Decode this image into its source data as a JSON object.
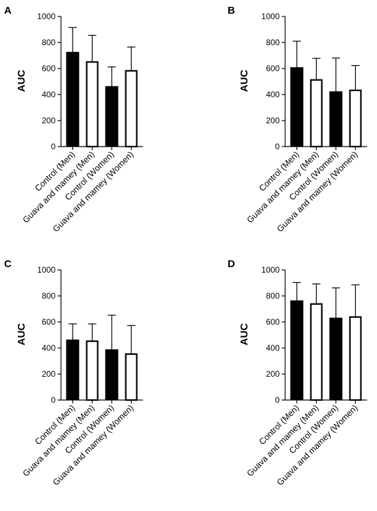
{
  "colors": {
    "filled": "#000000",
    "open": "#ffffff",
    "stroke": "#000000"
  },
  "chart_data": [
    {
      "type": "bar",
      "panel": "A",
      "ylabel": "AUC",
      "xlabel": "",
      "ylim": [
        0,
        1000
      ],
      "yticks": [
        0,
        200,
        400,
        600,
        800,
        1000
      ],
      "categories": [
        "Control (Men)",
        "Guava and mamey (Men)",
        "Control (Women)",
        "Guava and mamey (Women)"
      ],
      "values": [
        725,
        650,
        462,
        582
      ],
      "error_upper": [
        915,
        855,
        612,
        765
      ],
      "bar_fill": [
        "filled",
        "open",
        "filled",
        "open"
      ],
      "grid": false
    },
    {
      "type": "bar",
      "panel": "B",
      "ylabel": "AUC",
      "xlabel": "",
      "ylim": [
        0,
        1000
      ],
      "yticks": [
        0,
        200,
        400,
        600,
        800,
        1000
      ],
      "categories": [
        "Control (Men)",
        "Guava and mamey (Men)",
        "Control (Women)",
        "Guava and mamey (Women)"
      ],
      "values": [
        607,
        512,
        422,
        432
      ],
      "error_upper": [
        810,
        678,
        680,
        623
      ],
      "bar_fill": [
        "filled",
        "open",
        "filled",
        "open"
      ],
      "grid": false
    },
    {
      "type": "bar",
      "panel": "C",
      "ylabel": "AUC",
      "xlabel": "",
      "ylim": [
        0,
        1000
      ],
      "yticks": [
        0,
        200,
        400,
        600,
        800,
        1000
      ],
      "categories": [
        "Control (Men)",
        "Guava and mamey (Men)",
        "Control (Women)",
        "Guava and mamey (Women)"
      ],
      "values": [
        462,
        452,
        387,
        353
      ],
      "error_upper": [
        585,
        585,
        652,
        572
      ],
      "bar_fill": [
        "filled",
        "open",
        "filled",
        "open"
      ],
      "grid": false
    },
    {
      "type": "bar",
      "panel": "D",
      "ylabel": "AUC",
      "xlabel": "",
      "ylim": [
        0,
        1000
      ],
      "yticks": [
        0,
        200,
        400,
        600,
        800,
        1000
      ],
      "categories": [
        "Control (Men)",
        "Guava and mamey (Men)",
        "Control (Women)",
        "Guava and mamey (Women)"
      ],
      "values": [
        763,
        738,
        630,
        638
      ],
      "error_upper": [
        903,
        892,
        862,
        885
      ],
      "bar_fill": [
        "filled",
        "open",
        "filled",
        "open"
      ],
      "grid": false
    }
  ]
}
